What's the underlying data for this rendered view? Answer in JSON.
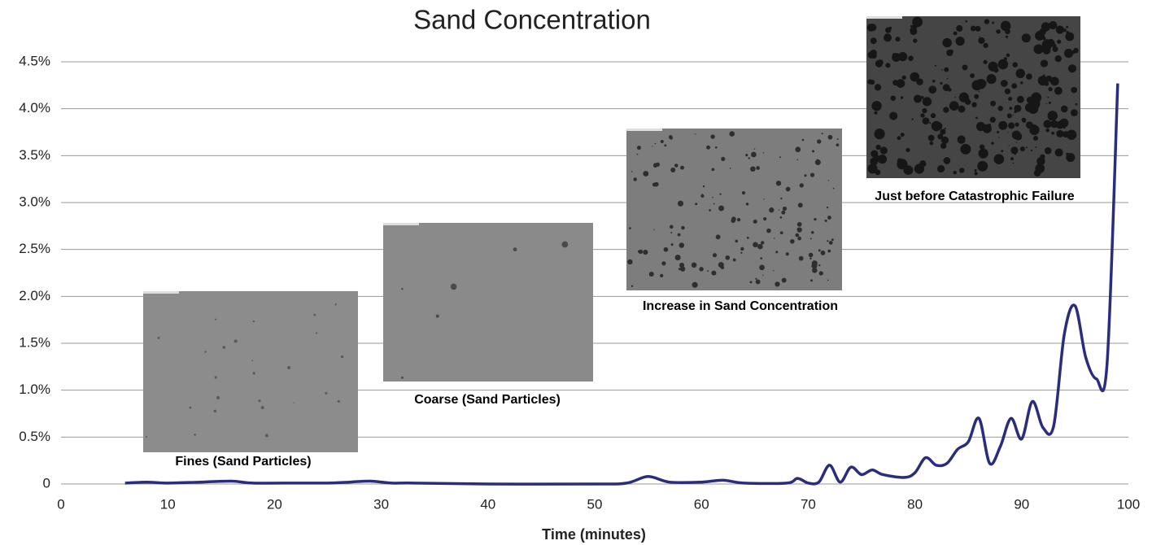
{
  "chart_data": {
    "type": "line",
    "title": "Sand Concentration",
    "x_label": "Time (minutes)",
    "x": [
      6,
      8,
      10,
      13,
      16,
      18,
      22,
      25,
      27,
      29,
      31,
      33,
      40,
      50,
      53,
      55,
      57,
      60,
      62,
      64,
      68,
      69,
      70,
      71,
      72,
      73,
      74,
      75,
      76,
      77,
      79,
      80,
      81,
      82,
      83,
      84,
      85,
      86,
      87,
      88,
      89,
      90,
      91,
      92,
      93,
      94,
      95,
      96,
      97,
      98,
      99
    ],
    "values": [
      0.01,
      0.02,
      0.01,
      0.02,
      0.03,
      0.01,
      0.01,
      0.01,
      0.02,
      0.03,
      0.01,
      0.01,
      0,
      0,
      0.01,
      0.08,
      0.02,
      0.02,
      0.04,
      0.01,
      0.01,
      0.06,
      0.01,
      0.02,
      0.2,
      0.02,
      0.18,
      0.1,
      0.15,
      0.1,
      0.07,
      0.12,
      0.28,
      0.2,
      0.22,
      0.37,
      0.45,
      0.7,
      0.22,
      0.4,
      0.7,
      0.48,
      0.88,
      0.6,
      0.62,
      1.6,
      1.9,
      1.35,
      1.12,
      1.28,
      4.27
    ],
    "color": "#2a2d7c",
    "xlim": [
      0,
      100
    ],
    "xticks": [
      0,
      10,
      20,
      30,
      40,
      50,
      60,
      70,
      80,
      90,
      100
    ],
    "ylim": [
      0,
      4.5
    ],
    "yticks": [
      0,
      {
        "value": 0.5,
        "label": "0.5%"
      },
      {
        "value": 1,
        "label": "1.0%"
      },
      {
        "value": 1.5,
        "label": "1.5%"
      },
      {
        "value": 2,
        "label": "2.0%"
      },
      {
        "value": 2.5,
        "label": "2.5%"
      },
      {
        "value": 3,
        "label": "3.0%"
      },
      {
        "value": 3.5,
        "label": "3.5%"
      },
      {
        "value": 4,
        "label": "4.0%"
      },
      {
        "value": 4.5,
        "label": "4.5%"
      }
    ],
    "grid": true,
    "annotations": [
      "Fines (Sand Particles)",
      "Coarse (Sand Particles)",
      "Increase in Sand Concentration",
      "Just before Catastrophic Failure"
    ]
  }
}
